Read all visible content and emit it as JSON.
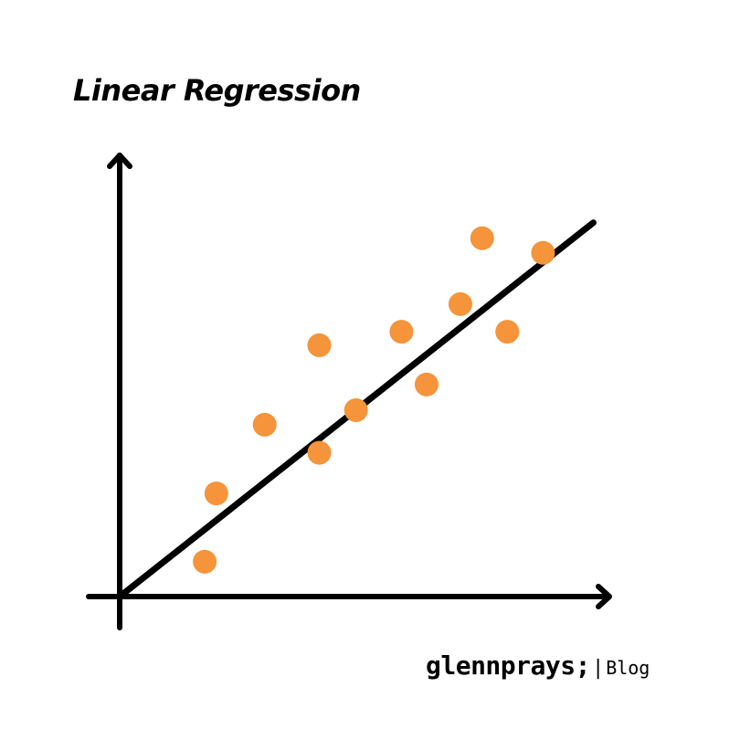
{
  "colors": {
    "background": "#ffffff",
    "axis": "#000000",
    "fit_line": "#000000",
    "points": "#F5943A"
  },
  "brand": {
    "name": "glennprays;",
    "separator": "|",
    "tag": "Blog"
  },
  "chart_data": {
    "type": "scatter",
    "title": "Linear Regression",
    "xlabel": "",
    "ylabel": "",
    "xlim": [
      0,
      10
    ],
    "ylim": [
      0,
      10
    ],
    "grid": false,
    "legend": "none",
    "axis_arrows": true,
    "tick_labels": false,
    "points": [
      {
        "x": 1.76,
        "y": 0.72
      },
      {
        "x": 2.0,
        "y": 2.13
      },
      {
        "x": 3.0,
        "y": 3.55
      },
      {
        "x": 4.13,
        "y": 2.97
      },
      {
        "x": 4.13,
        "y": 5.19
      },
      {
        "x": 4.89,
        "y": 3.85
      },
      {
        "x": 5.83,
        "y": 5.47
      },
      {
        "x": 6.35,
        "y": 4.38
      },
      {
        "x": 7.05,
        "y": 6.04
      },
      {
        "x": 7.5,
        "y": 7.4
      },
      {
        "x": 8.02,
        "y": 5.47
      },
      {
        "x": 8.76,
        "y": 7.1
      }
    ],
    "fit_line": {
      "slope": 0.788,
      "intercept": 0,
      "x_range": [
        0,
        9.8
      ]
    }
  }
}
